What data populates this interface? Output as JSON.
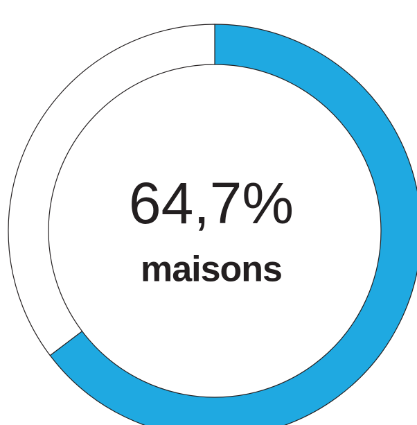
{
  "chart_data": {
    "type": "donut",
    "categories": [
      "maisons",
      null
    ],
    "values": [
      64.7,
      35.3
    ],
    "value_labels": [
      "64,7%",
      null
    ],
    "colors": [
      "#1fa9e1",
      "#ffffff"
    ]
  }
}
